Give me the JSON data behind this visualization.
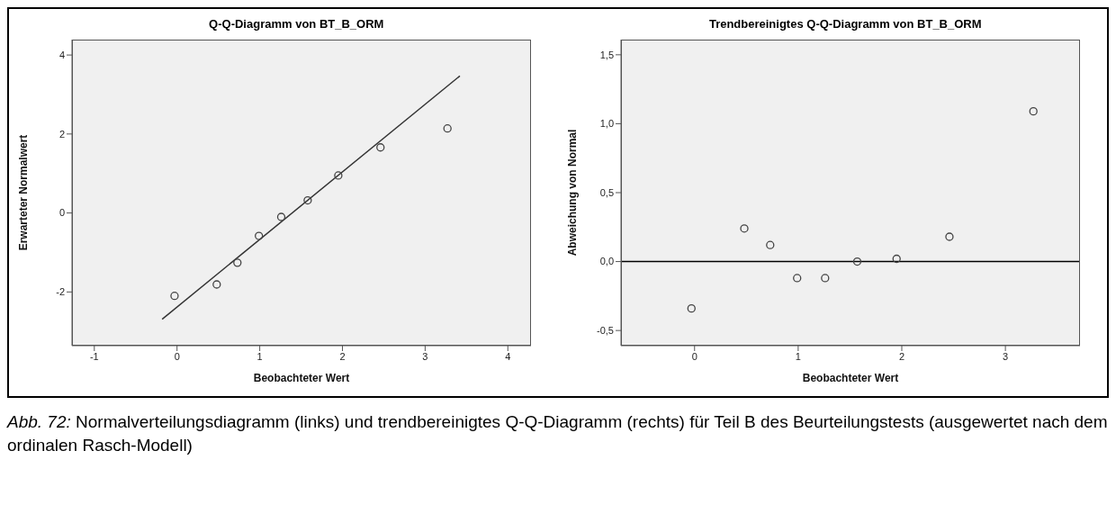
{
  "chart_data": [
    {
      "type": "scatter",
      "title": "Q-Q-Diagramm von BT_B_ORM",
      "xlabel": "Beobachteter Wert",
      "ylabel": "Erwarteter Normalwert",
      "xlim": [
        -1.27,
        4.28
      ],
      "ylim": [
        -3.36,
        4.39
      ],
      "xticks": [
        -1,
        0,
        1,
        2,
        3,
        4
      ],
      "yticks": [
        -2,
        0,
        2,
        4
      ],
      "series": [
        {
          "marker": "circle",
          "color": "#444444",
          "x": [
            -0.03,
            0.48,
            0.73,
            0.99,
            1.26,
            1.58,
            1.95,
            2.46,
            3.27
          ],
          "values": [
            -2.1,
            -1.81,
            -1.26,
            -0.58,
            -0.1,
            0.32,
            0.95,
            1.66,
            2.14
          ]
        },
        {
          "type": "line",
          "marker": "none",
          "color": "#333333",
          "x": [
            -0.18,
            3.42
          ],
          "values": [
            -2.69,
            3.47
          ]
        }
      ]
    },
    {
      "type": "scatter",
      "title": "Trendbereinigtes Q-Q-Diagramm von BT_B_ORM",
      "xlabel": "Beobachteter Wert",
      "ylabel": "Abweichung von Normal",
      "xlim": [
        -0.71,
        3.72
      ],
      "ylim": [
        -0.61,
        1.61
      ],
      "xticks": [
        0,
        1,
        2,
        3
      ],
      "yticks": [
        {
          "value": -0.5,
          "label": "-0,5"
        },
        {
          "value": 0,
          "label": "0,0"
        },
        {
          "value": 0.5,
          "label": "0,5"
        },
        {
          "value": 1,
          "label": "1,0"
        },
        {
          "value": 1.5,
          "label": "1,5"
        }
      ],
      "marker": "circle",
      "series": [
        {
          "color": "#444444",
          "x": [
            -0.03,
            0.48,
            0.73,
            0.99,
            1.26,
            1.57,
            1.95,
            2.46,
            3.27
          ],
          "values": [
            -0.34,
            0.24,
            0.12,
            -0.12,
            -0.12,
            0.0,
            0.02,
            0.18,
            1.09
          ]
        }
      ],
      "ref_lines": [
        {
          "axis": "y",
          "value": 0,
          "color": "#000000"
        }
      ],
      "annotations": [
        "Abb. 72: Normalverteilungsdiagramm (links) und trendbereinigtes Q-Q-Diagramm (rechts) für Teil B des Beurteilungstests (ausgewertet nach dem ordinalen Rasch-Modell)"
      ]
    }
  ]
}
